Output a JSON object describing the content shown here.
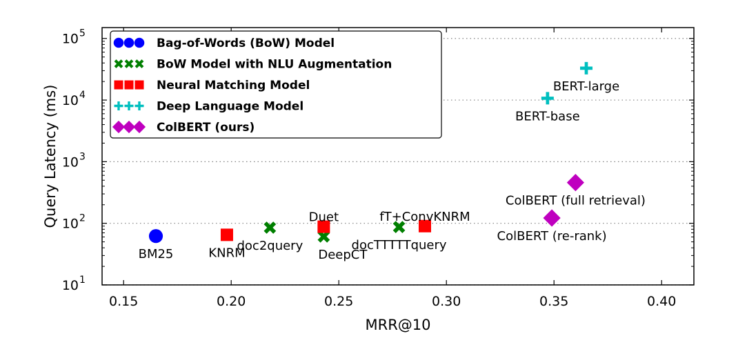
{
  "chart_data": {
    "type": "scatter",
    "xlabel": "MRR@10",
    "ylabel": "Query Latency (ms)",
    "xlim": [
      0.14,
      0.415
    ],
    "ylim": [
      10,
      150000
    ],
    "y_scale": "log",
    "x_ticks": [
      "0.15",
      "0.20",
      "0.25",
      "0.30",
      "0.35",
      "0.40"
    ],
    "y_ticks": [
      {
        "value": 10,
        "base": "10",
        "exp": "1"
      },
      {
        "value": 100,
        "base": "10",
        "exp": "2"
      },
      {
        "value": 1000,
        "base": "10",
        "exp": "3"
      },
      {
        "value": 10000,
        "base": "10",
        "exp": "4"
      },
      {
        "value": 100000,
        "base": "10",
        "exp": "5"
      }
    ],
    "grid": "horizontal-dotted",
    "legend_position": "upper-left",
    "series": [
      {
        "name": "Bag-of-Words (BoW) Model",
        "marker": "circle",
        "color": "#0000ff",
        "points": [
          {
            "label": "BM25",
            "x": 0.165,
            "y": 62,
            "label_pos": "below"
          }
        ]
      },
      {
        "name": "BoW Model with NLU Augmentation",
        "marker": "x",
        "color": "#007f00",
        "points": [
          {
            "label": "doc2query",
            "x": 0.218,
            "y": 85,
            "label_pos": "below"
          },
          {
            "label": "DeepCT",
            "x": 0.243,
            "y": 61,
            "label_pos": "below-right"
          },
          {
            "label": "docTTTTTquery",
            "x": 0.278,
            "y": 87,
            "label_pos": "below"
          }
        ]
      },
      {
        "name": "Neural Matching Model",
        "marker": "square",
        "color": "#ff0000",
        "points": [
          {
            "label": "KNRM",
            "x": 0.198,
            "y": 65,
            "label_pos": "below"
          },
          {
            "label": "Duet",
            "x": 0.243,
            "y": 88,
            "label_pos": "above"
          },
          {
            "label": "fT+ConvKNRM",
            "x": 0.29,
            "y": 90,
            "label_pos": "above"
          }
        ]
      },
      {
        "name": "Deep Language Model",
        "marker": "plus",
        "color": "#00bfbf",
        "points": [
          {
            "label": "BERT-base",
            "x": 0.347,
            "y": 10700,
            "label_pos": "below"
          },
          {
            "label": "BERT-large",
            "x": 0.365,
            "y": 32900,
            "label_pos": "below"
          }
        ]
      },
      {
        "name": "ColBERT (ours)",
        "marker": "diamond",
        "color": "#bf00bf",
        "points": [
          {
            "label": "ColBERT (re-rank)",
            "x": 0.349,
            "y": 122,
            "label_pos": "below"
          },
          {
            "label": "ColBERT (full retrieval)",
            "x": 0.36,
            "y": 458,
            "label_pos": "below"
          }
        ]
      }
    ]
  }
}
